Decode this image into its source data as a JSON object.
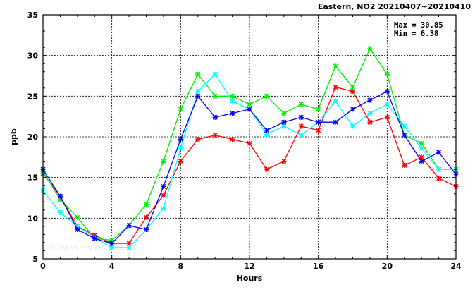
{
  "chart_data": {
    "type": "line",
    "title": "Eastern, NO2 20210407~20210410",
    "xlabel": "Hours",
    "ylabel": "ppb",
    "xlim": [
      0,
      24
    ],
    "ylim": [
      5,
      35
    ],
    "x_ticks": [
      0,
      4,
      8,
      12,
      16,
      20,
      24
    ],
    "y_ticks": [
      5,
      10,
      15,
      20,
      25,
      30,
      35
    ],
    "grid": true,
    "max_label": "Max = 30.85",
    "min_label": "Min =  6.38",
    "watermark": "© 2025  ENVF, HKUST",
    "x": [
      0,
      1,
      2,
      3,
      4,
      5,
      6,
      7,
      8,
      9,
      10,
      11,
      12,
      13,
      14,
      15,
      16,
      17,
      18,
      19,
      20,
      21,
      22,
      23,
      24
    ],
    "series": [
      {
        "color": "#ff0000",
        "values": [
          15.5,
          12.7,
          9.0,
          7.9,
          6.9,
          6.9,
          10.1,
          12.8,
          17.0,
          19.7,
          20.2,
          19.7,
          19.2,
          16.0,
          17.0,
          21.3,
          20.8,
          26.1,
          25.6,
          21.8,
          22.4,
          16.5,
          17.5,
          14.9,
          13.9
        ]
      },
      {
        "color": "#00ee00",
        "values": [
          15.7,
          12.3,
          10.1,
          7.5,
          7.3,
          9.1,
          11.7,
          17.0,
          23.4,
          27.7,
          25.0,
          25.0,
          24.0,
          25.0,
          22.9,
          24.0,
          23.4,
          28.7,
          26.1,
          30.85,
          27.7,
          20.2,
          19.2,
          16.0,
          16.0
        ]
      },
      {
        "color": "#00ffff",
        "values": [
          13.4,
          10.7,
          9.0,
          7.6,
          6.4,
          6.38,
          8.6,
          11.2,
          18.6,
          25.6,
          27.7,
          24.4,
          23.4,
          20.3,
          21.3,
          20.2,
          21.8,
          24.4,
          21.3,
          22.9,
          24.0,
          21.3,
          18.6,
          16.0,
          16.0
        ]
      },
      {
        "color": "#0000ff",
        "values": [
          16.0,
          12.7,
          8.6,
          7.5,
          6.9,
          9.1,
          8.6,
          13.9,
          19.7,
          25.0,
          22.4,
          22.9,
          23.4,
          20.8,
          21.8,
          22.4,
          21.8,
          21.8,
          23.4,
          24.5,
          25.6,
          20.2,
          17.0,
          18.1,
          15.4
        ]
      }
    ]
  }
}
